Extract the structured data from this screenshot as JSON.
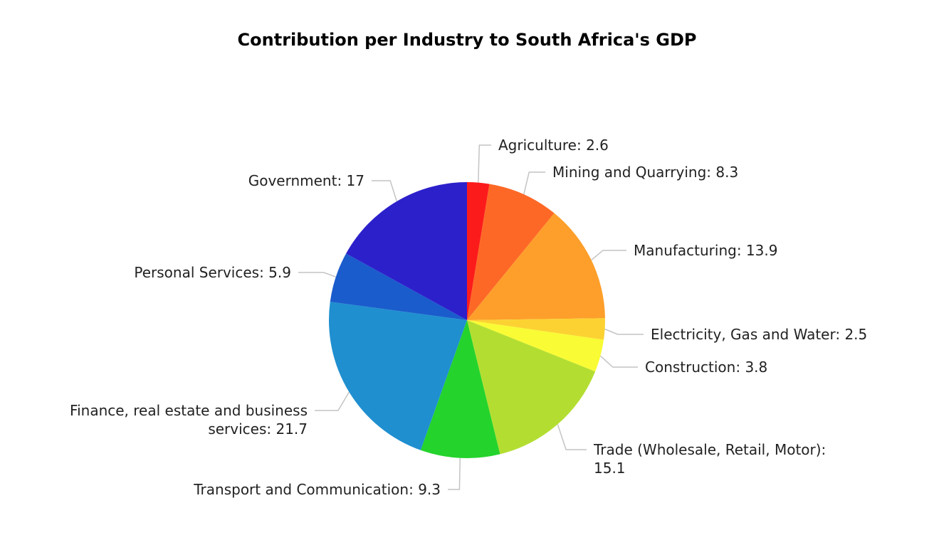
{
  "chart_data": {
    "type": "pie",
    "title": "Contribution per Industry to South Africa's GDP",
    "start_angle": "top, clockwise",
    "slices": [
      {
        "label": "Agriculture",
        "value": 2.6,
        "color": "#fc1b1b"
      },
      {
        "label": "Mining and Quarrying",
        "value": 8.3,
        "color": "#fd6826"
      },
      {
        "label": "Manufacturing",
        "value": 13.9,
        "color": "#fd9f2a"
      },
      {
        "label": "Electricity, Gas and Water",
        "value": 2.5,
        "color": "#fcd232"
      },
      {
        "label": "Construction",
        "value": 3.8,
        "color": "#f9fb34"
      },
      {
        "label": "Trade (Wholesale, Retail, Motor)",
        "value": 15.1,
        "color": "#b3de31"
      },
      {
        "label": "Transport and Communication",
        "value": 9.3,
        "color": "#24d32c"
      },
      {
        "label": "Finance, real estate and business services",
        "value": 21.7,
        "color": "#1f8fd0"
      },
      {
        "label": "Personal Services",
        "value": 5.9,
        "color": "#1a5ccc"
      },
      {
        "label": "Government",
        "value": 17,
        "color": "#2c20cb"
      }
    ]
  }
}
